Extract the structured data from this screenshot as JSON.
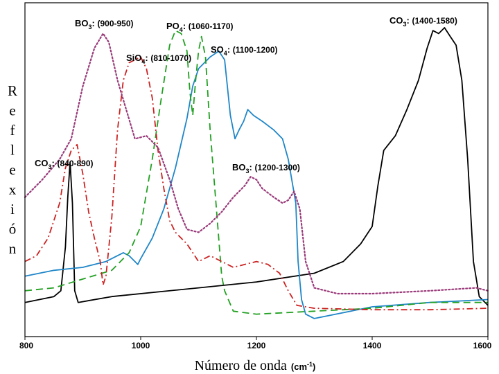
{
  "chart_data": {
    "type": "line",
    "xlabel": "Número de onda",
    "xlabel_unit": "(cm-1)",
    "ylabel": "Reflexión",
    "xlim": [
      800,
      1600
    ],
    "xticks": [
      800,
      1000,
      1200,
      1400,
      1600
    ],
    "y_units": "arbitrary (0–1 relative reflectance)",
    "ylim": [
      0,
      1
    ],
    "grid": false,
    "legend": "none",
    "annotations": [
      {
        "id": "co3_high",
        "species": "CO3",
        "subscript": "3",
        "range": "(1400-1580)"
      },
      {
        "id": "bo3_low",
        "species": "BO3",
        "subscript": "3",
        "range": "(900-950)"
      },
      {
        "id": "po4",
        "species": "PO4",
        "subscript": "4",
        "range": "(1060-1170)"
      },
      {
        "id": "sio4",
        "species": "SiO4",
        "subscript": "4",
        "range": "(810-1070)"
      },
      {
        "id": "so4",
        "species": "SO4",
        "subscript": "4",
        "range": "(1100-1200)"
      },
      {
        "id": "co3_low",
        "species": "CO3",
        "subscript": "3",
        "range": "(840-890)"
      },
      {
        "id": "bo3_high",
        "species": "BO3",
        "subscript": "3",
        "range": "(1200-1300)"
      }
    ],
    "series": [
      {
        "color": "#000000",
        "dash": "solid",
        "points": [
          [
            800,
            0.06
          ],
          [
            850,
            0.08
          ],
          [
            862,
            0.1
          ],
          [
            870,
            0.25
          ],
          [
            874,
            0.42
          ],
          [
            878,
            0.54
          ],
          [
            882,
            0.4
          ],
          [
            886,
            0.1
          ],
          [
            892,
            0.06
          ],
          [
            950,
            0.08
          ],
          [
            1100,
            0.11
          ],
          [
            1200,
            0.13
          ],
          [
            1300,
            0.16
          ],
          [
            1350,
            0.2
          ],
          [
            1380,
            0.26
          ],
          [
            1400,
            0.32
          ],
          [
            1410,
            0.46
          ],
          [
            1420,
            0.58
          ],
          [
            1440,
            0.63
          ],
          [
            1460,
            0.72
          ],
          [
            1480,
            0.82
          ],
          [
            1495,
            0.93
          ],
          [
            1505,
            0.99
          ],
          [
            1515,
            0.98
          ],
          [
            1525,
            1.0
          ],
          [
            1535,
            0.97
          ],
          [
            1545,
            0.94
          ],
          [
            1555,
            0.82
          ],
          [
            1565,
            0.55
          ],
          [
            1575,
            0.2
          ],
          [
            1585,
            0.08
          ],
          [
            1600,
            0.05
          ]
        ]
      },
      {
        "color": "#1f86c8",
        "dash": "solid",
        "points": [
          [
            800,
            0.15
          ],
          [
            850,
            0.17
          ],
          [
            900,
            0.18
          ],
          [
            940,
            0.2
          ],
          [
            970,
            0.23
          ],
          [
            980,
            0.22
          ],
          [
            990,
            0.2
          ],
          [
            995,
            0.19
          ],
          [
            1000,
            0.21
          ],
          [
            1020,
            0.28
          ],
          [
            1040,
            0.38
          ],
          [
            1060,
            0.52
          ],
          [
            1080,
            0.69
          ],
          [
            1090,
            0.8
          ],
          [
            1100,
            0.86
          ],
          [
            1120,
            0.9
          ],
          [
            1135,
            0.92
          ],
          [
            1145,
            0.89
          ],
          [
            1155,
            0.7
          ],
          [
            1163,
            0.62
          ],
          [
            1170,
            0.65
          ],
          [
            1178,
            0.68
          ],
          [
            1185,
            0.72
          ],
          [
            1195,
            0.7
          ],
          [
            1210,
            0.68
          ],
          [
            1230,
            0.65
          ],
          [
            1245,
            0.62
          ],
          [
            1255,
            0.55
          ],
          [
            1268,
            0.4
          ],
          [
            1272,
            0.2
          ],
          [
            1278,
            0.07
          ],
          [
            1285,
            0.02
          ],
          [
            1300,
            0.005
          ],
          [
            1400,
            0.045
          ],
          [
            1500,
            0.06
          ],
          [
            1600,
            0.07
          ]
        ]
      },
      {
        "color": "#22a022",
        "dash": "dash",
        "points": [
          [
            800,
            0.1
          ],
          [
            850,
            0.11
          ],
          [
            900,
            0.14
          ],
          [
            950,
            0.17
          ],
          [
            980,
            0.23
          ],
          [
            1000,
            0.32
          ],
          [
            1020,
            0.55
          ],
          [
            1035,
            0.75
          ],
          [
            1050,
            0.94
          ],
          [
            1060,
            0.99
          ],
          [
            1070,
            0.98
          ],
          [
            1080,
            0.92
          ],
          [
            1085,
            0.78
          ],
          [
            1090,
            0.7
          ],
          [
            1095,
            0.82
          ],
          [
            1100,
            0.92
          ],
          [
            1105,
            0.97
          ],
          [
            1112,
            0.9
          ],
          [
            1120,
            0.65
          ],
          [
            1130,
            0.4
          ],
          [
            1140,
            0.15
          ],
          [
            1145,
            0.1
          ],
          [
            1160,
            0.03
          ],
          [
            1200,
            0.02
          ],
          [
            1300,
            0.03
          ],
          [
            1400,
            0.04
          ],
          [
            1500,
            0.06
          ],
          [
            1600,
            0.06
          ]
        ]
      },
      {
        "color": "#cc2222",
        "dash": "dashdot",
        "points": [
          [
            800,
            0.2
          ],
          [
            820,
            0.22
          ],
          [
            840,
            0.28
          ],
          [
            860,
            0.4
          ],
          [
            870,
            0.52
          ],
          [
            880,
            0.58
          ],
          [
            890,
            0.6
          ],
          [
            900,
            0.5
          ],
          [
            910,
            0.37
          ],
          [
            920,
            0.28
          ],
          [
            930,
            0.2
          ],
          [
            935,
            0.12
          ],
          [
            940,
            0.15
          ],
          [
            950,
            0.35
          ],
          [
            960,
            0.65
          ],
          [
            970,
            0.82
          ],
          [
            980,
            0.88
          ],
          [
            1000,
            0.9
          ],
          [
            1010,
            0.86
          ],
          [
            1020,
            0.76
          ],
          [
            1030,
            0.58
          ],
          [
            1040,
            0.45
          ],
          [
            1050,
            0.34
          ],
          [
            1060,
            0.3
          ],
          [
            1080,
            0.26
          ],
          [
            1100,
            0.2
          ],
          [
            1120,
            0.22
          ],
          [
            1140,
            0.2
          ],
          [
            1160,
            0.18
          ],
          [
            1180,
            0.19
          ],
          [
            1200,
            0.2
          ],
          [
            1220,
            0.19
          ],
          [
            1240,
            0.16
          ],
          [
            1255,
            0.1
          ],
          [
            1270,
            0.05
          ],
          [
            1300,
            0.04
          ],
          [
            1400,
            0.035
          ],
          [
            1500,
            0.035
          ],
          [
            1600,
            0.04
          ]
        ]
      },
      {
        "color": "#9a3a7a",
        "dash": "dot",
        "points": [
          [
            800,
            0.42
          ],
          [
            830,
            0.48
          ],
          [
            860,
            0.55
          ],
          [
            880,
            0.62
          ],
          [
            900,
            0.8
          ],
          [
            920,
            0.93
          ],
          [
            935,
            0.98
          ],
          [
            945,
            0.95
          ],
          [
            960,
            0.82
          ],
          [
            975,
            0.72
          ],
          [
            990,
            0.62
          ],
          [
            1010,
            0.63
          ],
          [
            1030,
            0.59
          ],
          [
            1050,
            0.48
          ],
          [
            1065,
            0.38
          ],
          [
            1080,
            0.31
          ],
          [
            1100,
            0.3
          ],
          [
            1120,
            0.33
          ],
          [
            1140,
            0.37
          ],
          [
            1160,
            0.42
          ],
          [
            1180,
            0.46
          ],
          [
            1190,
            0.49
          ],
          [
            1200,
            0.48
          ],
          [
            1210,
            0.45
          ],
          [
            1230,
            0.42
          ],
          [
            1245,
            0.4
          ],
          [
            1255,
            0.41
          ],
          [
            1265,
            0.44
          ],
          [
            1275,
            0.38
          ],
          [
            1285,
            0.2
          ],
          [
            1300,
            0.11
          ],
          [
            1340,
            0.09
          ],
          [
            1400,
            0.09
          ],
          [
            1500,
            0.1
          ],
          [
            1580,
            0.11
          ],
          [
            1600,
            0.1
          ]
        ]
      }
    ]
  }
}
